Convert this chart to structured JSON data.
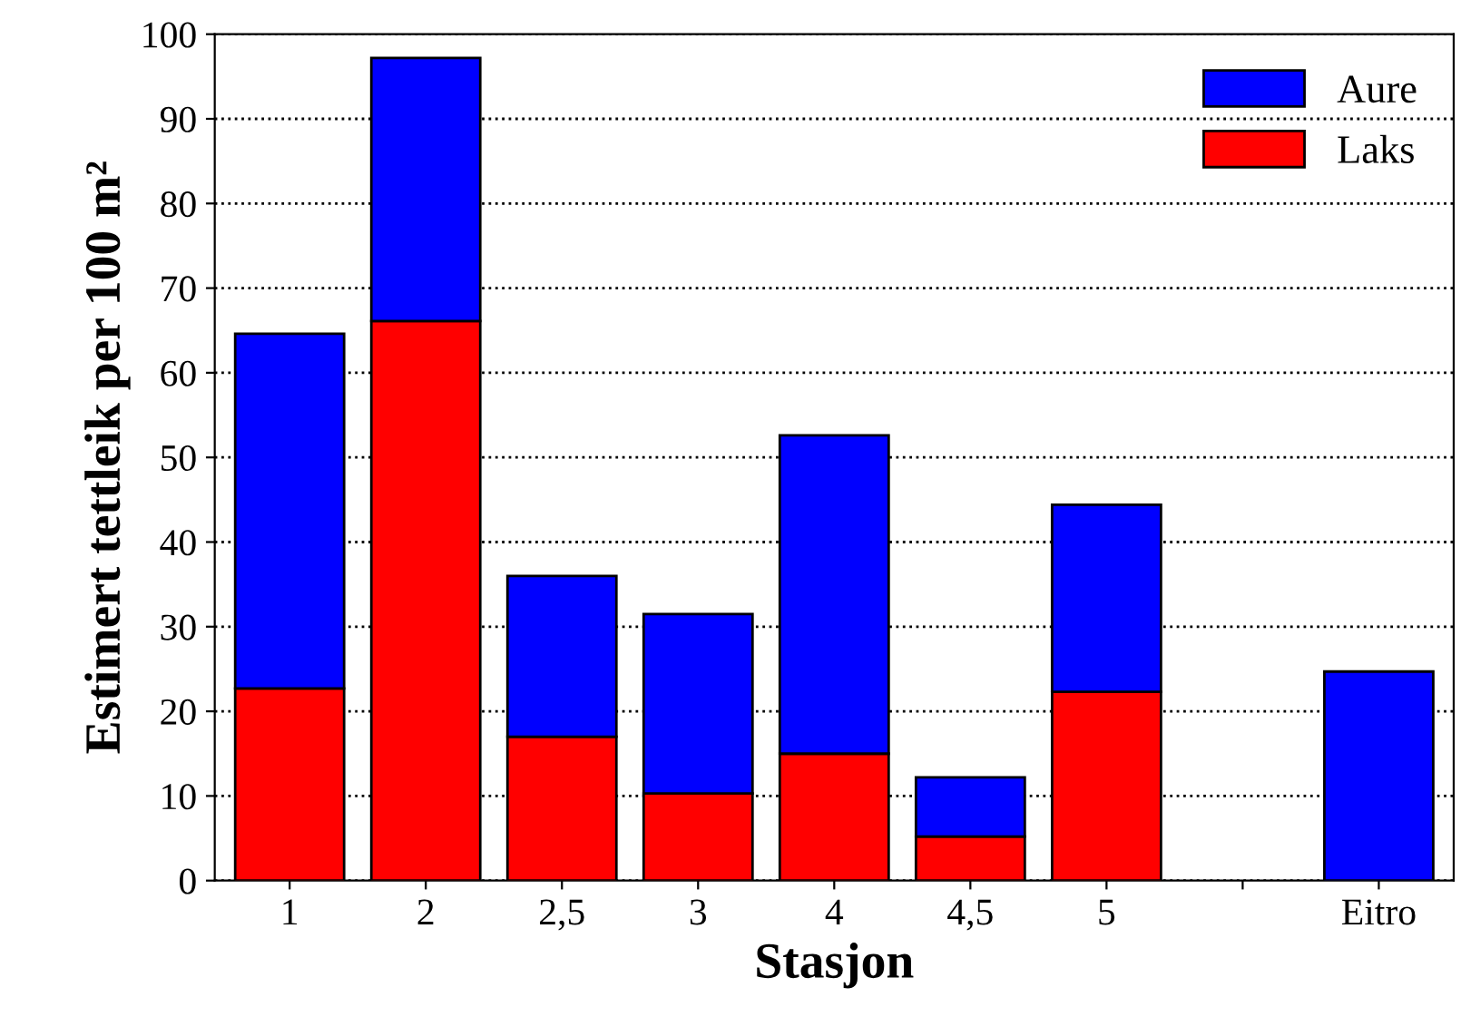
{
  "chart_data": {
    "type": "bar",
    "stacked": true,
    "xlabel": "Stasjon",
    "ylabel": "Estimert tettleik per 100 m²",
    "categories": [
      "1",
      "2",
      "2,5",
      "3",
      "4",
      "4,5",
      "5",
      null,
      "Eitro"
    ],
    "series": [
      {
        "name": "Laks",
        "color": "#ff0000",
        "values": [
          22.7,
          66.1,
          17.0,
          10.3,
          15.0,
          5.2,
          22.3,
          null,
          null
        ]
      },
      {
        "name": "Aure",
        "color": "#0000ff",
        "values": [
          41.9,
          31.1,
          19.0,
          21.2,
          37.6,
          7.0,
          22.1,
          null,
          24.7
        ]
      }
    ],
    "ylim": [
      0,
      100
    ],
    "yticks": [
      0,
      10,
      20,
      30,
      40,
      50,
      60,
      70,
      80,
      90,
      100
    ],
    "grid": "y",
    "legend": "top right"
  }
}
